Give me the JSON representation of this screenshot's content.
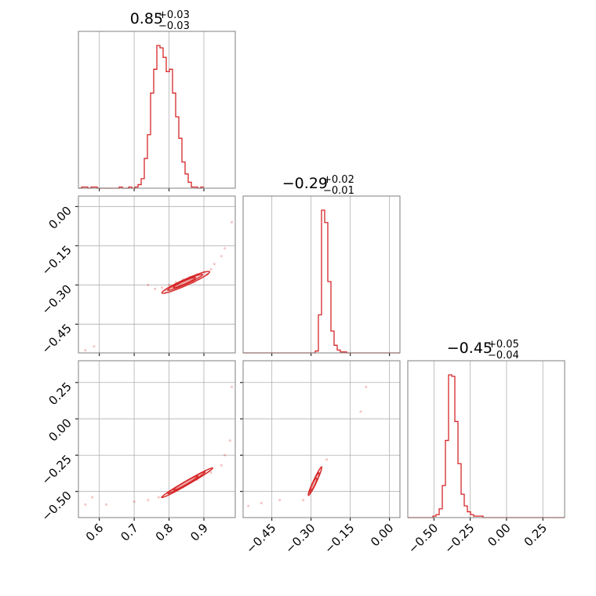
{
  "colors": {
    "series": "#d62728",
    "grid": "#b0b0b0",
    "frame": "#7f7f7f"
  },
  "chart_data": {
    "type": "corner",
    "grid": true,
    "titles": [
      {
        "value": "0.85",
        "plus": "+0.03",
        "minus": "−0.03"
      },
      {
        "value": "−0.29",
        "plus": "+0.02",
        "minus": "−0.01"
      },
      {
        "value": "−0.45",
        "plus": "+0.05",
        "minus": "−0.04"
      }
    ],
    "params": [
      {
        "range": [
          0.54,
          0.99
        ],
        "ticks": [
          0.6,
          0.7,
          0.8,
          0.9
        ],
        "tick_labels": [
          "0.6",
          "0.7",
          "0.8",
          "0.9"
        ]
      },
      {
        "range": [
          -0.56,
          0.04
        ],
        "ticks": [
          -0.45,
          -0.3,
          -0.15,
          0.0
        ],
        "tick_labels": [
          "−0.45",
          "−0.30",
          "−0.15",
          "0.00"
        ],
        "y_ticks": [
          -0.45,
          -0.3,
          -0.15,
          0.0
        ],
        "y_tick_labels": [
          "−0.45",
          "−0.30",
          "−0.15",
          "0.00"
        ]
      },
      {
        "range": [
          -0.68,
          0.4
        ],
        "ticks": [
          -0.5,
          -0.25,
          0.0,
          0.25
        ],
        "tick_labels": [
          "−0.50",
          "−0.25",
          "0.00",
          "0.25"
        ],
        "y_ticks": [
          -0.5,
          -0.25,
          0.0,
          0.25
        ],
        "y_tick_labels": [
          "−0.50",
          "−0.25",
          "0.00",
          "0.25"
        ]
      }
    ],
    "histograms": [
      {
        "param": 0,
        "bin_start": 0.54,
        "bin_width": 0.009,
        "counts": [
          0,
          1,
          1,
          0,
          1,
          1,
          0,
          0,
          0,
          0,
          0,
          0,
          0,
          1,
          0,
          0,
          1,
          0,
          1,
          3,
          8,
          25,
          45,
          80,
          100,
          120,
          118,
          110,
          98,
          100,
          80,
          60,
          42,
          22,
          12,
          5,
          1,
          1,
          0,
          1
        ]
      },
      {
        "param": 1,
        "bin_start": -0.56,
        "bin_width": 0.012,
        "counts": [
          0,
          0,
          0,
          0,
          0,
          0,
          0,
          0,
          0,
          0,
          0,
          0,
          0,
          0,
          0,
          0,
          0,
          0,
          0,
          0,
          0,
          0,
          0,
          2,
          40,
          150,
          137,
          75,
          23,
          8,
          3,
          1,
          1,
          0,
          0,
          0,
          0,
          0,
          0,
          0,
          0,
          0,
          0,
          0,
          0,
          0,
          0,
          0,
          0,
          0
        ]
      },
      {
        "param": 2,
        "bin_start": -0.68,
        "bin_width": 0.0216,
        "counts": [
          0,
          0,
          0,
          0,
          0,
          0,
          0,
          0,
          1,
          2,
          6,
          22,
          53,
          98,
          97,
          66,
          37,
          16,
          8,
          4,
          2,
          1,
          1,
          1,
          0,
          0,
          0,
          0,
          0,
          0,
          0,
          0,
          0,
          0,
          0,
          0,
          0,
          0,
          0,
          0,
          0,
          0,
          0,
          0,
          0,
          0,
          0,
          0,
          0,
          0
        ]
      }
    ],
    "scatter": [
      {
        "x_param": 0,
        "y_param": 1,
        "points": [
          [
            0.585,
            -0.535
          ],
          [
            0.56,
            -0.55
          ],
          [
            0.98,
            -0.06
          ],
          [
            0.96,
            -0.16
          ],
          [
            0.95,
            -0.19
          ],
          [
            0.93,
            -0.22
          ],
          [
            0.92,
            -0.24
          ],
          [
            0.9,
            -0.25
          ],
          [
            0.88,
            -0.26
          ],
          [
            0.86,
            -0.27
          ],
          [
            0.84,
            -0.28
          ],
          [
            0.82,
            -0.29
          ],
          [
            0.8,
            -0.3
          ],
          [
            0.78,
            -0.31
          ],
          [
            0.76,
            -0.315
          ],
          [
            0.79,
            -0.32
          ],
          [
            0.83,
            -0.31
          ],
          [
            0.87,
            -0.29
          ],
          [
            0.91,
            -0.26
          ],
          [
            0.74,
            -0.3
          ]
        ],
        "contours": [
          {
            "cx": 0.848,
            "cy": -0.29,
            "rx": 0.075,
            "ry": 0.012,
            "angle": 24
          },
          {
            "cx": 0.846,
            "cy": -0.29,
            "rx": 0.055,
            "ry": 0.008,
            "angle": 24
          },
          {
            "cx": 0.844,
            "cy": -0.291,
            "rx": 0.035,
            "ry": 0.005,
            "angle": 24
          }
        ]
      },
      {
        "x_param": 0,
        "y_param": 2,
        "points": [
          [
            0.98,
            0.22
          ],
          [
            0.975,
            -0.15
          ],
          [
            0.96,
            -0.25
          ],
          [
            0.58,
            -0.54
          ],
          [
            0.56,
            -0.59
          ],
          [
            0.62,
            -0.59
          ],
          [
            0.7,
            -0.57
          ],
          [
            0.74,
            -0.56
          ],
          [
            0.77,
            -0.54
          ],
          [
            0.8,
            -0.52
          ],
          [
            0.84,
            -0.47
          ],
          [
            0.88,
            -0.42
          ],
          [
            0.92,
            -0.37
          ],
          [
            0.95,
            -0.32
          ]
        ],
        "contours": [
          {
            "cx": 0.852,
            "cy": -0.44,
            "rx": 0.085,
            "ry": 0.014,
            "angle": 30
          },
          {
            "cx": 0.85,
            "cy": -0.44,
            "rx": 0.062,
            "ry": 0.01,
            "angle": 30
          },
          {
            "cx": 0.848,
            "cy": -0.442,
            "rx": 0.04,
            "ry": 0.006,
            "angle": 30
          }
        ]
      },
      {
        "x_param": 1,
        "y_param": 2,
        "points": [
          [
            -0.09,
            0.22
          ],
          [
            -0.11,
            0.05
          ],
          [
            -0.24,
            -0.28
          ],
          [
            -0.26,
            -0.33
          ],
          [
            -0.33,
            -0.56
          ],
          [
            -0.42,
            -0.56
          ],
          [
            -0.49,
            -0.58
          ],
          [
            -0.54,
            -0.6
          ]
        ],
        "contours": [
          {
            "cx": -0.285,
            "cy": -0.43,
            "rx": 0.06,
            "ry": 0.011,
            "angle": 65
          },
          {
            "cx": -0.287,
            "cy": -0.44,
            "rx": 0.042,
            "ry": 0.008,
            "angle": 65
          },
          {
            "cx": -0.29,
            "cy": -0.45,
            "rx": 0.025,
            "ry": 0.005,
            "angle": 65
          }
        ]
      }
    ]
  }
}
